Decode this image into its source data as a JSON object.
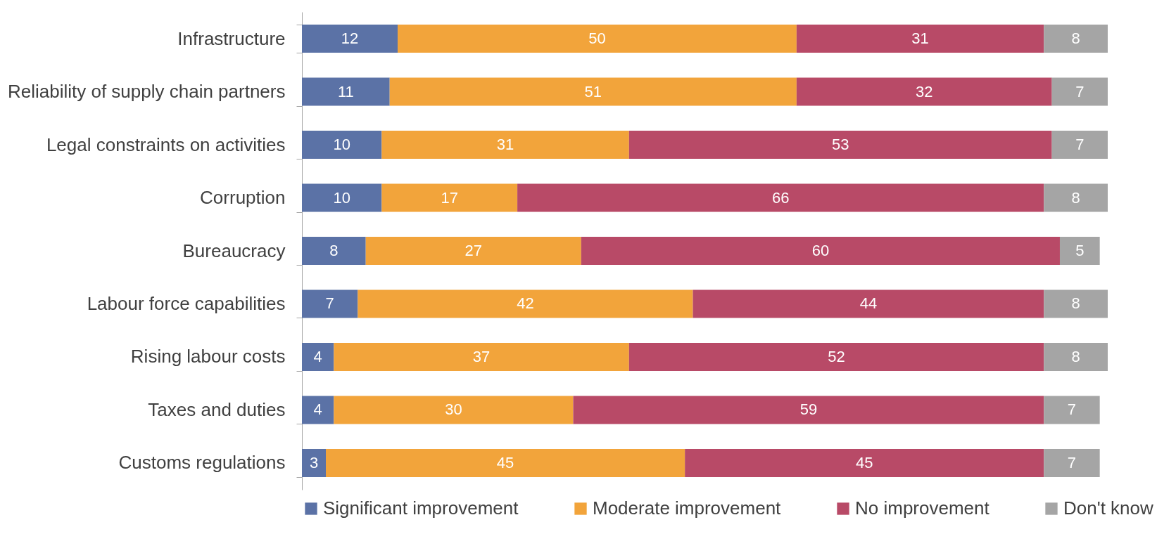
{
  "chart_data": {
    "type": "bar",
    "orientation": "horizontal",
    "stacked": true,
    "data_labels": true,
    "legend": "bottom",
    "categories": [
      "Infrastructure",
      "Reliability of supply chain partners",
      "Legal constraints on activities",
      "Corruption",
      "Bureaucracy",
      "Labour force capabilities",
      "Rising labour costs",
      "Taxes and duties",
      "Customs regulations"
    ],
    "series": [
      {
        "name": "Significant improvement",
        "color": "#5b72a6",
        "values": [
          12,
          11,
          10,
          10,
          8,
          7,
          4,
          4,
          3
        ]
      },
      {
        "name": "Moderate improvement",
        "color": "#f2a43b",
        "values": [
          50,
          51,
          31,
          17,
          27,
          42,
          37,
          30,
          45
        ]
      },
      {
        "name": "No improvement",
        "color": "#b84a67",
        "values": [
          31,
          32,
          53,
          66,
          60,
          44,
          52,
          59,
          45
        ]
      },
      {
        "name": "Don't know",
        "color": "#a5a5a5",
        "values": [
          8,
          7,
          7,
          8,
          5,
          8,
          8,
          7,
          7
        ]
      }
    ]
  }
}
